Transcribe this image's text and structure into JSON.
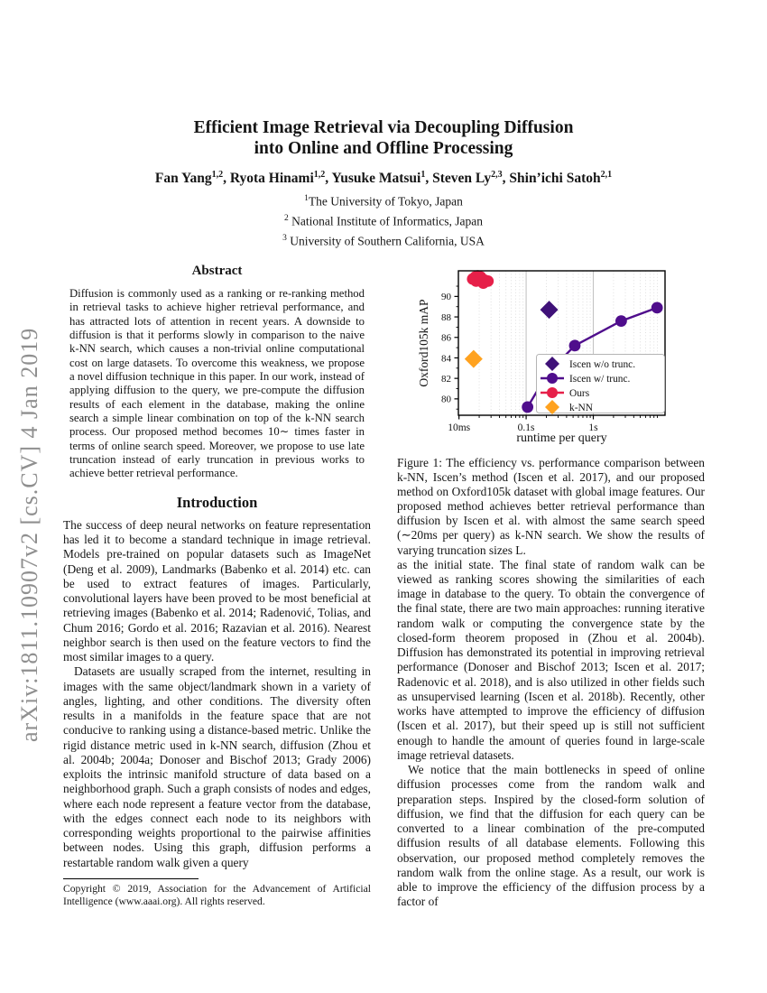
{
  "sidebar": {
    "arxiv_label": "arXiv:1811.10907v2  [cs.CV]  4 Jan 2019"
  },
  "header": {
    "title_line1": "Efficient Image Retrieval via Decoupling Diffusion",
    "title_line2": "into Online and Offline Processing",
    "authors": [
      {
        "name": "Fan Yang",
        "sup": "1,2"
      },
      {
        "name": "Ryota Hinami",
        "sup": "1,2"
      },
      {
        "name": "Yusuke Matsui",
        "sup": "1"
      },
      {
        "name": "Steven Ly",
        "sup": "2,3"
      },
      {
        "name": "Shin’ichi Satoh",
        "sup": "2,1"
      }
    ],
    "affiliations": [
      {
        "sup": "1",
        "text": "The University of Tokyo, Japan"
      },
      {
        "sup": "2",
        "text": " National Institute of Informatics, Japan"
      },
      {
        "sup": "3",
        "text": " University of Southern California, USA"
      }
    ]
  },
  "left_column": {
    "abstract_heading": "Abstract",
    "abstract_text": "Diffusion is commonly used as a ranking or re-ranking method in retrieval tasks to achieve higher retrieval performance, and has attracted lots of attention in recent years. A downside to diffusion is that it performs slowly in comparison to the naive k-NN search, which causes a non-trivial online computational cost on large datasets. To overcome this weakness, we propose a novel diffusion technique in this paper. In our work, instead of applying diffusion to the query, we pre-compute the diffusion results of each element in the database, making the online search a simple linear combination on top of the k-NN search process. Our proposed method becomes 10∼ times faster in terms of online search speed. Moreover, we propose to use late truncation instead of early truncation in previous works to achieve better retrieval performance.",
    "intro_heading": "Introduction",
    "intro_p1": "The success of deep neural networks on feature representation has led it to become a standard technique in image retrieval. Models pre-trained on popular datasets such as ImageNet (Deng et al. 2009), Landmarks (Babenko et al. 2014) etc. can be used to extract features of images. Particularly, convolutional layers have been proved to be most beneficial at retrieving images (Babenko et al. 2014; Radenović, Tolias, and Chum 2016; Gordo et al. 2016; Razavian et al. 2016). Nearest neighbor search is then used on the feature vectors to find the most similar images to a query.",
    "intro_p2": "Datasets are usually scraped from the internet, resulting in images with the same object/landmark shown in a variety of angles, lighting, and other conditions. The diversity often results in a manifolds in the feature space that are not conducive to ranking using a distance-based metric. Unlike the rigid distance metric used in k-NN search, diffusion (Zhou et al. 2004b; 2004a; Donoser and Bischof 2013; Grady 2006) exploits the intrinsic manifold structure of data based on a neighborhood graph. Such a graph consists of nodes and edges, where each node represent a feature vector from the database, with the edges connect each node to its neighbors with corresponding weights proportional to the pairwise affinities between nodes. Using this graph, diffusion performs a restartable random walk given a query",
    "footnote": "Copyright © 2019, Association for the Advancement of Artificial Intelligence (www.aaai.org). All rights reserved."
  },
  "right_column": {
    "figure_caption": "Figure 1: The efficiency vs. performance comparison between k-NN, Iscen’s method (Iscen et al. 2017), and our proposed method on Oxford105k dataset with global image features. Our proposed method achieves better retrieval performance than diffusion by Iscen et al. with almost the same search speed (∼20ms per query) as k-NN search. We show the results of varying truncation sizes L.",
    "p1": "as the initial state. The final state of random walk can be viewed as ranking scores showing the similarities of each image in database to the query. To obtain the convergence of the final state, there are two main approaches: running iterative random walk or computing the convergence state by the closed-form theorem proposed in (Zhou et al. 2004b). Diffusion has demonstrated its potential in improving retrieval performance (Donoser and Bischof 2013; Iscen et al. 2017; Radenovic et al. 2018), and is also utilized in other fields such as unsupervised learning (Iscen et al. 2018b). Recently, other works have attempted to improve the efficiency of diffusion (Iscen et al. 2017), but their speed up is still not sufficient enough to handle the amount of queries found in large-scale image retrieval datasets.",
    "p2": "We notice that the main bottlenecks in speed of online diffusion processes come from the random walk and preparation steps. Inspired by the closed-form solution of diffusion, we find that the diffusion for each query can be converted to a linear combination of the pre-computed diffusion results of all database elements. Following this observation, our proposed method completely removes the random walk from the online stage. As a result, our work is able to improve the efficiency of the diffusion process by a factor of"
  },
  "chart_data": {
    "type": "scatter",
    "title": "",
    "xlabel": "runtime per query",
    "ylabel": "Oxford105k mAP",
    "x_scale": "log",
    "xlim": [
      0.0098,
      11.7
    ],
    "ylim": [
      78.4,
      92.5
    ],
    "x_ticks": [
      {
        "value": 0.01,
        "label": "10ms"
      },
      {
        "value": 0.1,
        "label": "0.1s"
      },
      {
        "value": 1,
        "label": "1s"
      }
    ],
    "y_ticks": [
      80,
      82,
      84,
      86,
      88,
      90
    ],
    "grid": "vertical, log minor dotted",
    "legend_position": "lower right",
    "series": [
      {
        "name": "Iscen w/o trunc.",
        "marker": "diamond",
        "line": false,
        "color": "#3f1178",
        "points": [
          [
            0.22,
            88.7
          ]
        ]
      },
      {
        "name": "Iscen w/ trunc.",
        "marker": "circle",
        "line": true,
        "color": "#4f0d8c",
        "points": [
          [
            0.105,
            79.2
          ],
          [
            0.21,
            82.5
          ],
          [
            0.53,
            85.2
          ],
          [
            2.6,
            87.6
          ],
          [
            8.9,
            88.9
          ]
        ]
      },
      {
        "name": "Ours",
        "marker": "circle",
        "line": true,
        "color": "#e62049",
        "points": [
          [
            0.016,
            91.7
          ],
          [
            0.0175,
            91.9
          ],
          [
            0.019,
            92.0
          ],
          [
            0.021,
            91.9
          ],
          [
            0.018,
            91.5
          ],
          [
            0.0205,
            91.6
          ],
          [
            0.024,
            91.6
          ],
          [
            0.027,
            91.5
          ],
          [
            0.023,
            91.3
          ]
        ]
      },
      {
        "name": "k-NN",
        "marker": "diamond",
        "line": false,
        "color": "#ffa21f",
        "points": [
          [
            0.0165,
            83.9
          ]
        ]
      }
    ]
  }
}
